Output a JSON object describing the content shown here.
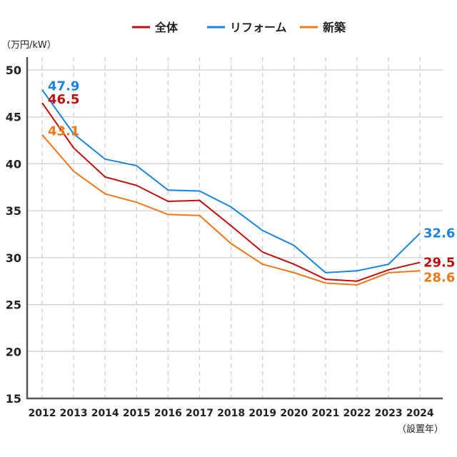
{
  "chart_data": {
    "type": "line",
    "ylabel": "（万円/kW）",
    "xlabel": "（設置年）",
    "ylim": [
      15,
      50
    ],
    "yticks": [
      15,
      20,
      25,
      30,
      35,
      40,
      45,
      50
    ],
    "x": [
      "2012",
      "2013",
      "2014",
      "2015",
      "2016",
      "2017",
      "2018",
      "2019",
      "2020",
      "2021",
      "2022",
      "2023",
      "2024"
    ],
    "grid": "horizontal solid, vertical dashed",
    "legend": "top",
    "series": [
      {
        "name": "全体",
        "color": "#c00d0d",
        "values": [
          46.5,
          41.7,
          38.6,
          37.7,
          36.0,
          36.1,
          33.4,
          30.6,
          29.3,
          27.7,
          27.5,
          28.7,
          29.5
        ],
        "labels": {
          "first": "46.5",
          "last": "29.5"
        }
      },
      {
        "name": "リフォーム",
        "color": "#1a84e0",
        "values": [
          47.9,
          43.2,
          40.5,
          39.8,
          37.2,
          37.1,
          35.4,
          32.9,
          31.3,
          28.4,
          28.6,
          29.3,
          32.6
        ],
        "labels": {
          "first": "47.9",
          "last": "32.6"
        }
      },
      {
        "name": "新築",
        "color": "#f07818",
        "values": [
          43.1,
          39.2,
          36.8,
          35.9,
          34.6,
          34.5,
          31.5,
          29.3,
          28.4,
          27.3,
          27.1,
          28.4,
          28.6
        ],
        "labels": {
          "first": "43.1",
          "last": "28.6"
        }
      }
    ]
  }
}
